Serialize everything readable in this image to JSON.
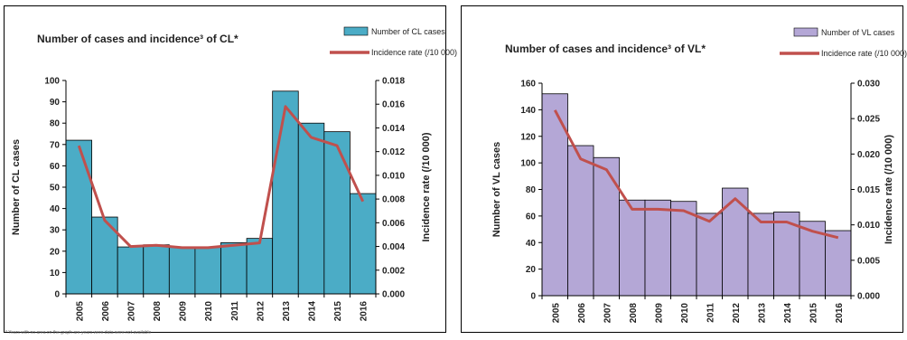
{
  "chart_data": [
    {
      "type": "bar",
      "title": "Number of cases and incidence³ of CL*",
      "categories": [
        "2005",
        "2006",
        "2007",
        "2008",
        "2009",
        "2010",
        "2011",
        "2012",
        "2013",
        "2014",
        "2015",
        "2016"
      ],
      "series": [
        {
          "name": "Number of CL cases",
          "axis": "left",
          "type": "bar",
          "values": [
            72,
            36,
            22,
            23,
            22,
            22,
            24,
            26,
            95,
            80,
            76,
            47
          ]
        },
        {
          "name": "Incidence rate (/10 000)",
          "axis": "right",
          "type": "line",
          "values": [
            0.0125,
            0.0062,
            0.004,
            0.0041,
            0.0039,
            0.0039,
            0.0041,
            0.0043,
            0.0158,
            0.0132,
            0.0125,
            0.0078
          ]
        }
      ],
      "ylabel": "Number of CL cases",
      "y2label": "Incidence rate (/10 000)",
      "ylim": [
        0,
        100
      ],
      "y2lim": [
        0,
        0.018
      ],
      "yticks": [
        "0",
        "10",
        "20",
        "30",
        "40",
        "50",
        "60",
        "70",
        "80",
        "90",
        "100"
      ],
      "y2ticks": [
        "0.000",
        "0.002",
        "0.004",
        "0.006",
        "0.008",
        "0.010",
        "0.012",
        "0.014",
        "0.016",
        "0.018"
      ],
      "legend": "top-right",
      "colors": {
        "bar": "#4bacc6",
        "line": "#c0504d"
      }
    },
    {
      "type": "bar",
      "title": "Number of cases and incidence³ of VL*",
      "categories": [
        "2005",
        "2006",
        "2007",
        "2008",
        "2009",
        "2010",
        "2011",
        "2012",
        "2013",
        "2014",
        "2015",
        "2016"
      ],
      "series": [
        {
          "name": "Number of VL cases",
          "axis": "left",
          "type": "bar",
          "values": [
            152,
            113,
            104,
            72,
            72,
            71,
            62,
            81,
            62,
            63,
            56,
            49
          ]
        },
        {
          "name": "Incidence rate (/10 000)",
          "axis": "right",
          "type": "line",
          "values": [
            0.0262,
            0.0193,
            0.0178,
            0.0122,
            0.0122,
            0.012,
            0.0105,
            0.0137,
            0.0104,
            0.0104,
            0.0091,
            0.0082
          ]
        }
      ],
      "ylabel": "Number of VL cases",
      "y2label": "Incidence rate (/10 000)",
      "ylim": [
        0,
        160
      ],
      "y2lim": [
        0,
        0.03
      ],
      "yticks": [
        "0",
        "20",
        "40",
        "60",
        "80",
        "100",
        "120",
        "140",
        "160"
      ],
      "y2ticks": [
        "0.000",
        "0.005",
        "0.010",
        "0.015",
        "0.020",
        "0.025",
        "0.030"
      ],
      "legend": "top-right",
      "colors": {
        "bar": "#b4a7d6",
        "line": "#c0504d"
      }
    }
  ],
  "footnote": "* Years with no area on the graph are years were data were not available"
}
